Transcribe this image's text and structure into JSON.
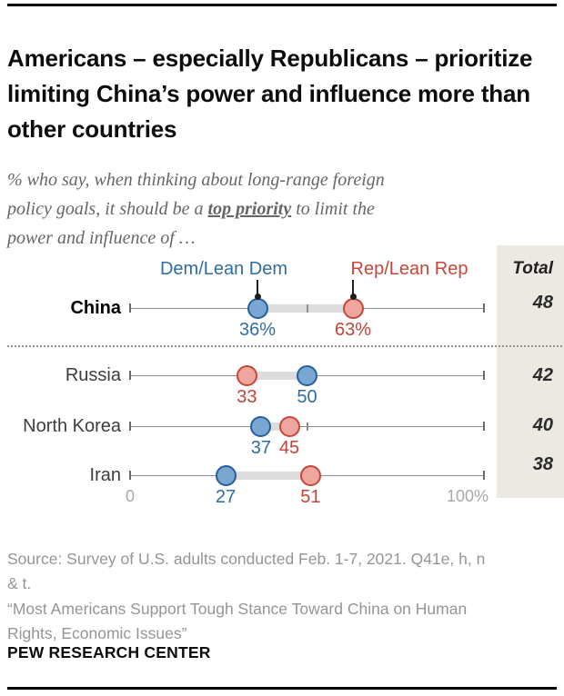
{
  "header": {
    "title": "Americans – especially Republicans – prioritize limiting China’s power and influence more than other countries",
    "subtitle_line1": "% who say, when thinking about long-range foreign",
    "subtitle_line2_before": "policy goals, it should be a ",
    "subtitle_line2_emphasis": "top priority",
    "subtitle_line2_after": " to limit the",
    "subtitle_line3": "power and influence of …"
  },
  "legend": {
    "dem_label": "Dem/Lean Dem",
    "rep_label": "Rep/Lean Rep"
  },
  "chart_data": {
    "type": "scatter",
    "subtype": "dumbbell-dot-plot",
    "categories": [
      "China",
      "Russia",
      "North Korea",
      "Iran"
    ],
    "highlight_category": "China",
    "series": [
      {
        "name": "Dem/Lean Dem",
        "values": [
          36,
          50,
          37,
          27
        ],
        "labels": [
          "36%",
          "50",
          "37",
          "27"
        ]
      },
      {
        "name": "Rep/Lean Rep",
        "values": [
          63,
          33,
          45,
          51
        ],
        "labels": [
          "63%",
          "33",
          "45",
          "51"
        ]
      }
    ],
    "totals": {
      "header": "Total",
      "values": [
        "48",
        "42",
        "40",
        "38"
      ]
    },
    "axis": {
      "min": 0,
      "max": 100,
      "min_label": "0",
      "max_label": "100%",
      "mid_tick": 50
    },
    "legend_position": "top",
    "grid": false
  },
  "colors": {
    "dem_text": "#2e6da4",
    "dem_fill": "#7aa6d2",
    "dem_stroke": "#265f99",
    "rep_text": "#c44437",
    "rep_fill": "#eea69e",
    "rep_stroke": "#c5473a",
    "total_panel_bg": "#ece9e2",
    "axis_line": "#8c8c8c",
    "connector_band": "#dcdcdc",
    "callout": "#1f1f1f"
  },
  "source": {
    "lines": [
      "Source: Survey of U.S. adults conducted Feb. 1-7, 2021. Q41e, h, n",
      "& t.",
      "“Most Americans Support Tough Stance Toward China on Human",
      "Rights, Economic Issues”"
    ]
  },
  "footer": {
    "brand": "PEW RESEARCH CENTER"
  }
}
